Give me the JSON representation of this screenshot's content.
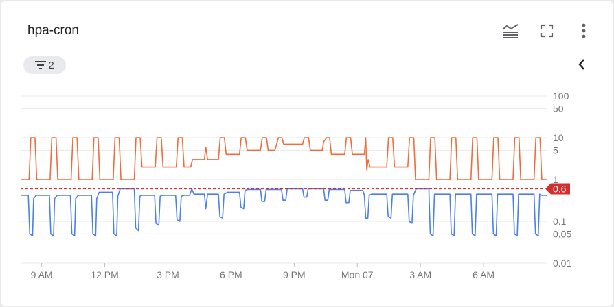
{
  "header": {
    "title": "hpa-cron"
  },
  "toolbar": {
    "legend_icon": "legend-lines-icon",
    "fullscreen_icon": "fullscreen-icon",
    "more_icon": "more-vert-icon",
    "collapse_icon": "chevron-left-icon"
  },
  "filter_chip": {
    "count": "2",
    "icon": "filter-list-icon"
  },
  "colors": {
    "series_orange": "#f26b3a",
    "series_blue": "#4a7ff0",
    "threshold": "#d32f2f",
    "grid": "#e8e8e8",
    "axis_text": "#757575"
  },
  "chart_data": {
    "type": "line",
    "y_scale": "log",
    "ylim": [
      0.01,
      100
    ],
    "y_ticks": [
      100,
      50,
      10,
      5,
      1,
      0.1,
      0.05,
      0.01
    ],
    "y_tick_labels": [
      "100",
      "50",
      "10",
      "5",
      "1",
      "0.1",
      "0.05",
      "0.01"
    ],
    "x_range": [
      "2024-01-06 08:00",
      "2024-01-07 09:00"
    ],
    "x_ticks": [
      {
        "label": "9 AM",
        "time": "2024-01-06 09:00"
      },
      {
        "label": "12 PM",
        "time": "2024-01-06 12:00"
      },
      {
        "label": "3 PM",
        "time": "2024-01-06 15:00"
      },
      {
        "label": "6 PM",
        "time": "2024-01-06 18:00"
      },
      {
        "label": "9 PM",
        "time": "2024-01-06 21:00"
      },
      {
        "label": "Mon 07",
        "time": "2024-01-07 00:00"
      },
      {
        "label": "3 AM",
        "time": "2024-01-07 03:00"
      },
      {
        "label": "6 AM",
        "time": "2024-01-07 06:00"
      }
    ],
    "threshold": {
      "value": 0.6,
      "label": "0.6"
    },
    "grid": true,
    "series": [
      {
        "color": "#f26b3a",
        "points": [
          [
            "2024-01-06 08:00",
            1
          ],
          [
            "2024-01-06 08:24",
            1
          ],
          [
            "2024-01-06 08:29",
            10
          ],
          [
            "2024-01-06 08:41",
            10
          ],
          [
            "2024-01-06 08:46",
            1
          ],
          [
            "2024-01-06 09:24",
            1
          ],
          [
            "2024-01-06 09:29",
            10
          ],
          [
            "2024-01-06 09:41",
            10
          ],
          [
            "2024-01-06 09:46",
            1
          ],
          [
            "2024-01-06 10:24",
            1
          ],
          [
            "2024-01-06 10:29",
            10
          ],
          [
            "2024-01-06 10:41",
            10
          ],
          [
            "2024-01-06 10:46",
            1
          ],
          [
            "2024-01-06 11:24",
            1
          ],
          [
            "2024-01-06 11:29",
            10
          ],
          [
            "2024-01-06 11:41",
            10
          ],
          [
            "2024-01-06 11:46",
            1
          ],
          [
            "2024-01-06 12:24",
            1
          ],
          [
            "2024-01-06 12:29",
            10
          ],
          [
            "2024-01-06 12:41",
            10
          ],
          [
            "2024-01-06 12:46",
            1
          ],
          [
            "2024-01-06 13:24",
            1
          ],
          [
            "2024-01-06 13:29",
            10
          ],
          [
            "2024-01-06 13:41",
            10
          ],
          [
            "2024-01-06 13:46",
            2
          ],
          [
            "2024-01-06 14:24",
            2
          ],
          [
            "2024-01-06 14:29",
            10
          ],
          [
            "2024-01-06 14:41",
            10
          ],
          [
            "2024-01-06 14:46",
            2
          ],
          [
            "2024-01-06 15:24",
            2
          ],
          [
            "2024-01-06 15:29",
            10
          ],
          [
            "2024-01-06 15:41",
            10
          ],
          [
            "2024-01-06 15:46",
            2
          ],
          [
            "2024-01-06 16:05",
            2
          ],
          [
            "2024-01-06 16:10",
            3
          ],
          [
            "2024-01-06 16:44",
            3
          ],
          [
            "2024-01-06 16:48",
            6
          ],
          [
            "2024-01-06 16:53",
            3
          ],
          [
            "2024-01-06 17:24",
            3
          ],
          [
            "2024-01-06 17:29",
            10
          ],
          [
            "2024-01-06 17:41",
            10
          ],
          [
            "2024-01-06 17:46",
            4
          ],
          [
            "2024-01-06 18:24",
            4
          ],
          [
            "2024-01-06 18:29",
            10
          ],
          [
            "2024-01-06 18:41",
            10
          ],
          [
            "2024-01-06 18:46",
            5
          ],
          [
            "2024-01-06 19:24",
            5
          ],
          [
            "2024-01-06 19:29",
            10
          ],
          [
            "2024-01-06 19:41",
            10
          ],
          [
            "2024-01-06 19:46",
            5
          ],
          [
            "2024-01-06 20:05",
            5
          ],
          [
            "2024-01-06 20:10",
            7
          ],
          [
            "2024-01-06 20:15",
            10
          ],
          [
            "2024-01-06 20:25",
            10
          ],
          [
            "2024-01-06 20:30",
            7
          ],
          [
            "2024-01-06 21:24",
            7
          ],
          [
            "2024-01-06 21:29",
            10
          ],
          [
            "2024-01-06 21:41",
            10
          ],
          [
            "2024-01-06 21:46",
            5
          ],
          [
            "2024-01-06 22:20",
            5
          ],
          [
            "2024-01-06 22:24",
            8
          ],
          [
            "2024-01-06 22:33",
            10
          ],
          [
            "2024-01-06 22:41",
            10
          ],
          [
            "2024-01-06 22:46",
            4
          ],
          [
            "2024-01-06 23:24",
            4
          ],
          [
            "2024-01-06 23:29",
            10
          ],
          [
            "2024-01-06 23:41",
            10
          ],
          [
            "2024-01-06 23:46",
            4
          ],
          [
            "2024-01-07 00:20",
            4
          ],
          [
            "2024-01-07 00:24",
            10
          ],
          [
            "2024-01-07 00:27",
            1.7
          ],
          [
            "2024-01-07 00:31",
            3
          ],
          [
            "2024-01-07 00:36",
            2
          ],
          [
            "2024-01-07 01:24",
            2
          ],
          [
            "2024-01-07 01:29",
            10
          ],
          [
            "2024-01-07 01:41",
            10
          ],
          [
            "2024-01-07 01:46",
            2
          ],
          [
            "2024-01-07 02:24",
            2
          ],
          [
            "2024-01-07 02:29",
            10
          ],
          [
            "2024-01-07 02:41",
            10
          ],
          [
            "2024-01-07 02:46",
            1
          ],
          [
            "2024-01-07 03:24",
            1
          ],
          [
            "2024-01-07 03:29",
            10
          ],
          [
            "2024-01-07 03:41",
            10
          ],
          [
            "2024-01-07 03:46",
            1
          ],
          [
            "2024-01-07 04:24",
            1
          ],
          [
            "2024-01-07 04:29",
            10
          ],
          [
            "2024-01-07 04:41",
            10
          ],
          [
            "2024-01-07 04:46",
            1
          ],
          [
            "2024-01-07 05:24",
            1
          ],
          [
            "2024-01-07 05:29",
            10
          ],
          [
            "2024-01-07 05:41",
            10
          ],
          [
            "2024-01-07 05:46",
            1
          ],
          [
            "2024-01-07 06:24",
            1
          ],
          [
            "2024-01-07 06:29",
            10
          ],
          [
            "2024-01-07 06:41",
            10
          ],
          [
            "2024-01-07 06:46",
            1
          ],
          [
            "2024-01-07 07:24",
            1
          ],
          [
            "2024-01-07 07:29",
            10
          ],
          [
            "2024-01-07 07:41",
            10
          ],
          [
            "2024-01-07 07:46",
            1
          ],
          [
            "2024-01-07 08:24",
            1
          ],
          [
            "2024-01-07 08:29",
            10
          ],
          [
            "2024-01-07 08:41",
            10
          ],
          [
            "2024-01-07 08:46",
            1
          ],
          [
            "2024-01-07 09:00",
            1
          ]
        ]
      },
      {
        "color": "#4a7ff0",
        "points": [
          [
            "2024-01-06 08:00",
            0.42
          ],
          [
            "2024-01-06 08:22",
            0.42
          ],
          [
            "2024-01-06 08:26",
            0.05
          ],
          [
            "2024-01-06 08:34",
            0.045
          ],
          [
            "2024-01-06 08:37",
            0.35
          ],
          [
            "2024-01-06 08:44",
            0.42
          ],
          [
            "2024-01-06 09:22",
            0.42
          ],
          [
            "2024-01-06 09:26",
            0.05
          ],
          [
            "2024-01-06 09:34",
            0.045
          ],
          [
            "2024-01-06 09:37",
            0.35
          ],
          [
            "2024-01-06 09:44",
            0.42
          ],
          [
            "2024-01-06 10:22",
            0.42
          ],
          [
            "2024-01-06 10:26",
            0.05
          ],
          [
            "2024-01-06 10:34",
            0.045
          ],
          [
            "2024-01-06 10:37",
            0.35
          ],
          [
            "2024-01-06 10:44",
            0.42
          ],
          [
            "2024-01-06 11:22",
            0.42
          ],
          [
            "2024-01-06 11:26",
            0.05
          ],
          [
            "2024-01-06 11:34",
            0.045
          ],
          [
            "2024-01-06 11:37",
            0.35
          ],
          [
            "2024-01-06 11:44",
            0.5
          ],
          [
            "2024-01-06 12:22",
            0.5
          ],
          [
            "2024-01-06 12:26",
            0.05
          ],
          [
            "2024-01-06 12:34",
            0.045
          ],
          [
            "2024-01-06 12:37",
            0.4
          ],
          [
            "2024-01-06 12:44",
            0.6
          ],
          [
            "2024-01-06 13:24",
            0.6
          ],
          [
            "2024-01-06 13:28",
            0.07
          ],
          [
            "2024-01-06 13:36",
            0.06
          ],
          [
            "2024-01-06 13:40",
            0.4
          ],
          [
            "2024-01-06 13:46",
            0.42
          ],
          [
            "2024-01-06 14:22",
            0.42
          ],
          [
            "2024-01-06 14:26",
            0.09
          ],
          [
            "2024-01-06 14:34",
            0.08
          ],
          [
            "2024-01-06 14:38",
            0.4
          ],
          [
            "2024-01-06 14:44",
            0.42
          ],
          [
            "2024-01-06 15:22",
            0.42
          ],
          [
            "2024-01-06 15:26",
            0.11
          ],
          [
            "2024-01-06 15:34",
            0.1
          ],
          [
            "2024-01-06 15:38",
            0.4
          ],
          [
            "2024-01-06 15:46",
            0.42
          ],
          [
            "2024-01-06 16:02",
            0.42
          ],
          [
            "2024-01-06 16:08",
            0.6
          ],
          [
            "2024-01-06 16:14",
            0.45
          ],
          [
            "2024-01-06 16:44",
            0.45
          ],
          [
            "2024-01-06 16:48",
            0.2
          ],
          [
            "2024-01-06 16:53",
            0.45
          ],
          [
            "2024-01-06 17:24",
            0.45
          ],
          [
            "2024-01-06 17:28",
            0.13
          ],
          [
            "2024-01-06 17:36",
            0.12
          ],
          [
            "2024-01-06 17:40",
            0.45
          ],
          [
            "2024-01-06 17:50",
            0.5
          ],
          [
            "2024-01-06 18:24",
            0.5
          ],
          [
            "2024-01-06 18:28",
            0.22
          ],
          [
            "2024-01-06 18:36",
            0.2
          ],
          [
            "2024-01-06 18:40",
            0.55
          ],
          [
            "2024-01-06 18:48",
            0.58
          ],
          [
            "2024-01-06 19:24",
            0.58
          ],
          [
            "2024-01-06 19:28",
            0.3
          ],
          [
            "2024-01-06 19:36",
            0.3
          ],
          [
            "2024-01-06 19:40",
            0.58
          ],
          [
            "2024-01-06 20:24",
            0.58
          ],
          [
            "2024-01-06 20:28",
            0.32
          ],
          [
            "2024-01-06 20:36",
            0.32
          ],
          [
            "2024-01-06 20:40",
            0.6
          ],
          [
            "2024-01-06 21:24",
            0.6
          ],
          [
            "2024-01-06 21:28",
            0.38
          ],
          [
            "2024-01-06 21:36",
            0.38
          ],
          [
            "2024-01-06 21:40",
            0.6
          ],
          [
            "2024-01-06 22:24",
            0.6
          ],
          [
            "2024-01-06 22:28",
            0.32
          ],
          [
            "2024-01-06 22:36",
            0.32
          ],
          [
            "2024-01-06 22:40",
            0.58
          ],
          [
            "2024-01-06 23:24",
            0.58
          ],
          [
            "2024-01-06 23:28",
            0.28
          ],
          [
            "2024-01-06 23:36",
            0.28
          ],
          [
            "2024-01-06 23:40",
            0.55
          ],
          [
            "2024-01-07 00:16",
            0.55
          ],
          [
            "2024-01-07 00:20",
            0.42
          ],
          [
            "2024-01-07 00:24",
            0.12
          ],
          [
            "2024-01-07 00:30",
            0.12
          ],
          [
            "2024-01-07 00:34",
            0.42
          ],
          [
            "2024-01-07 00:40",
            0.45
          ],
          [
            "2024-01-07 01:24",
            0.45
          ],
          [
            "2024-01-07 01:28",
            0.13
          ],
          [
            "2024-01-07 01:36",
            0.12
          ],
          [
            "2024-01-07 01:40",
            0.45
          ],
          [
            "2024-01-07 01:48",
            0.45
          ],
          [
            "2024-01-07 02:24",
            0.45
          ],
          [
            "2024-01-07 02:28",
            0.1
          ],
          [
            "2024-01-07 02:36",
            0.09
          ],
          [
            "2024-01-07 02:40",
            0.42
          ],
          [
            "2024-01-07 02:48",
            0.6
          ],
          [
            "2024-01-07 03:24",
            0.6
          ],
          [
            "2024-01-07 03:28",
            0.05
          ],
          [
            "2024-01-07 03:36",
            0.045
          ],
          [
            "2024-01-07 03:40",
            0.45
          ],
          [
            "2024-01-07 03:46",
            0.45
          ],
          [
            "2024-01-07 04:24",
            0.45
          ],
          [
            "2024-01-07 04:28",
            0.05
          ],
          [
            "2024-01-07 04:36",
            0.045
          ],
          [
            "2024-01-07 04:40",
            0.45
          ],
          [
            "2024-01-07 04:46",
            0.45
          ],
          [
            "2024-01-07 05:24",
            0.45
          ],
          [
            "2024-01-07 05:28",
            0.05
          ],
          [
            "2024-01-07 05:36",
            0.045
          ],
          [
            "2024-01-07 05:40",
            0.45
          ],
          [
            "2024-01-07 05:46",
            0.45
          ],
          [
            "2024-01-07 06:24",
            0.45
          ],
          [
            "2024-01-07 06:28",
            0.05
          ],
          [
            "2024-01-07 06:36",
            0.045
          ],
          [
            "2024-01-07 06:40",
            0.45
          ],
          [
            "2024-01-07 06:46",
            0.45
          ],
          [
            "2024-01-07 07:24",
            0.45
          ],
          [
            "2024-01-07 07:28",
            0.05
          ],
          [
            "2024-01-07 07:36",
            0.045
          ],
          [
            "2024-01-07 07:40",
            0.45
          ],
          [
            "2024-01-07 07:46",
            0.45
          ],
          [
            "2024-01-07 08:24",
            0.45
          ],
          [
            "2024-01-07 08:28",
            0.05
          ],
          [
            "2024-01-07 08:36",
            0.045
          ],
          [
            "2024-01-07 08:40",
            0.45
          ],
          [
            "2024-01-07 08:46",
            0.42
          ],
          [
            "2024-01-07 09:00",
            0.42
          ]
        ]
      }
    ]
  }
}
